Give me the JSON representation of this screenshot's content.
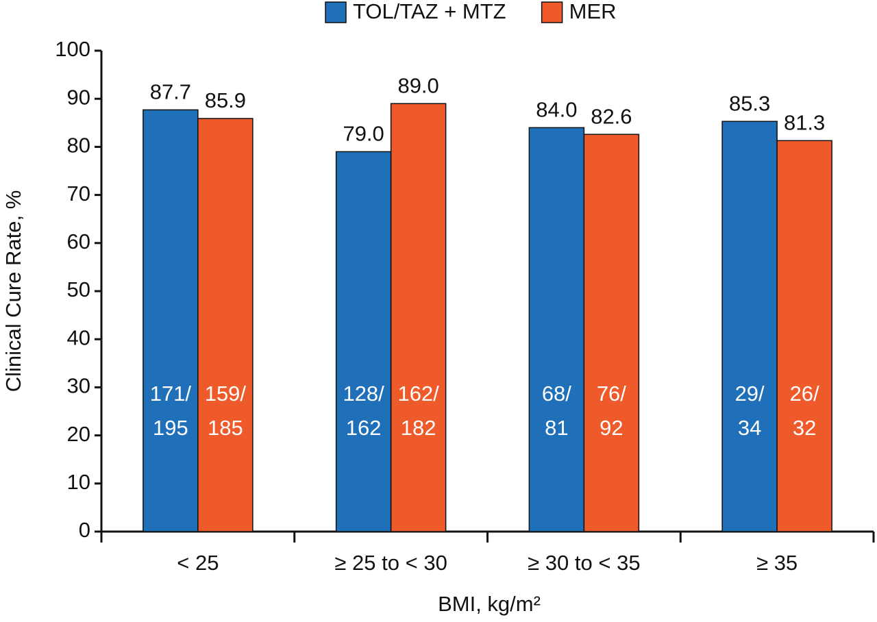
{
  "chart_data": {
    "type": "bar",
    "y_label": "Clinical Cure Rate, %",
    "x_label": "BMI, kg/m²",
    "categories": [
      "< 25",
      "≥ 25 to < 30",
      "≥ 30 to < 35",
      "≥ 35"
    ],
    "series": [
      {
        "name": "TOL/TAZ + MTZ",
        "color": "#1f70b9",
        "values": [
          87.7,
          79.0,
          84.0,
          85.3
        ],
        "value_labels": [
          "87.7",
          "79.0",
          "84.0",
          "85.3"
        ],
        "counts": [
          [
            "171/",
            "195"
          ],
          [
            "128/",
            "162"
          ],
          [
            "68/",
            "81"
          ],
          [
            "29/",
            "34"
          ]
        ]
      },
      {
        "name": "MER",
        "color": "#ee5a2a",
        "values": [
          85.9,
          89.0,
          82.6,
          81.3
        ],
        "value_labels": [
          "85.9",
          "89.0",
          "82.6",
          "81.3"
        ],
        "counts": [
          [
            "159/",
            "185"
          ],
          [
            "162/",
            "182"
          ],
          [
            "76/",
            "92"
          ],
          [
            "26/",
            "32"
          ]
        ]
      }
    ],
    "ylim": [
      0,
      100
    ],
    "yticks": [
      0,
      10,
      20,
      30,
      40,
      50,
      60,
      70,
      80,
      90,
      100
    ],
    "legend": "top"
  }
}
